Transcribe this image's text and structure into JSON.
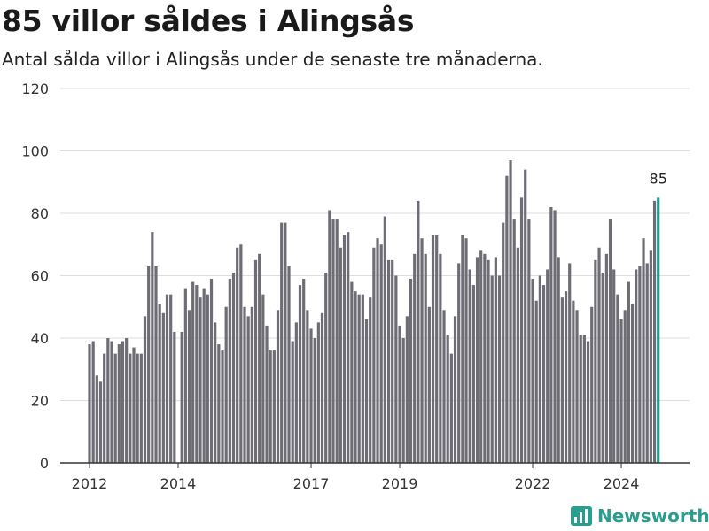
{
  "title": "85 villor såldes i Alingsås",
  "subtitle": "Antal sålda villor i Alingsås under de senaste tre månaderna.",
  "brand": {
    "name": "Newsworthy",
    "color": "#2a9d8f"
  },
  "chart_data": {
    "type": "bar",
    "ylim": [
      0,
      120
    ],
    "yticks": [
      0,
      20,
      40,
      60,
      80,
      100,
      120
    ],
    "x_tick_labels": [
      {
        "label": "2012",
        "index": 0
      },
      {
        "label": "2014",
        "index": 24
      },
      {
        "label": "2017",
        "index": 60
      },
      {
        "label": "2019",
        "index": 84
      },
      {
        "label": "2022",
        "index": 120
      },
      {
        "label": "2024",
        "index": 144
      }
    ],
    "grid": true,
    "bar_color": "#6e6d75",
    "highlight_color": "#1f9e8e",
    "highlight_label": "85",
    "values": [
      38,
      39,
      28,
      26,
      35,
      40,
      39,
      35,
      38,
      39,
      40,
      35,
      37,
      35,
      35,
      47,
      63,
      74,
      63,
      51,
      48,
      54,
      54,
      42,
      0,
      42,
      56,
      49,
      58,
      57,
      53,
      56,
      54,
      59,
      45,
      38,
      36,
      50,
      59,
      61,
      69,
      70,
      50,
      47,
      50,
      65,
      67,
      54,
      44,
      36,
      36,
      49,
      77,
      77,
      63,
      39,
      45,
      57,
      59,
      49,
      43,
      40,
      45,
      48,
      61,
      81,
      78,
      78,
      69,
      73,
      74,
      58,
      55,
      54,
      54,
      46,
      53,
      69,
      72,
      70,
      79,
      65,
      65,
      60,
      44,
      40,
      47,
      59,
      67,
      84,
      72,
      67,
      50,
      73,
      73,
      67,
      49,
      41,
      35,
      47,
      64,
      73,
      72,
      62,
      57,
      66,
      68,
      67,
      65,
      60,
      66,
      60,
      77,
      92,
      97,
      78,
      69,
      85,
      94,
      78,
      59,
      52,
      60,
      57,
      62,
      82,
      81,
      66,
      53,
      55,
      64,
      52,
      49,
      41,
      41,
      39,
      50,
      65,
      69,
      61,
      67,
      78,
      62,
      54,
      46,
      49,
      58,
      51,
      62,
      63,
      72,
      64,
      68,
      84,
      85
    ]
  }
}
